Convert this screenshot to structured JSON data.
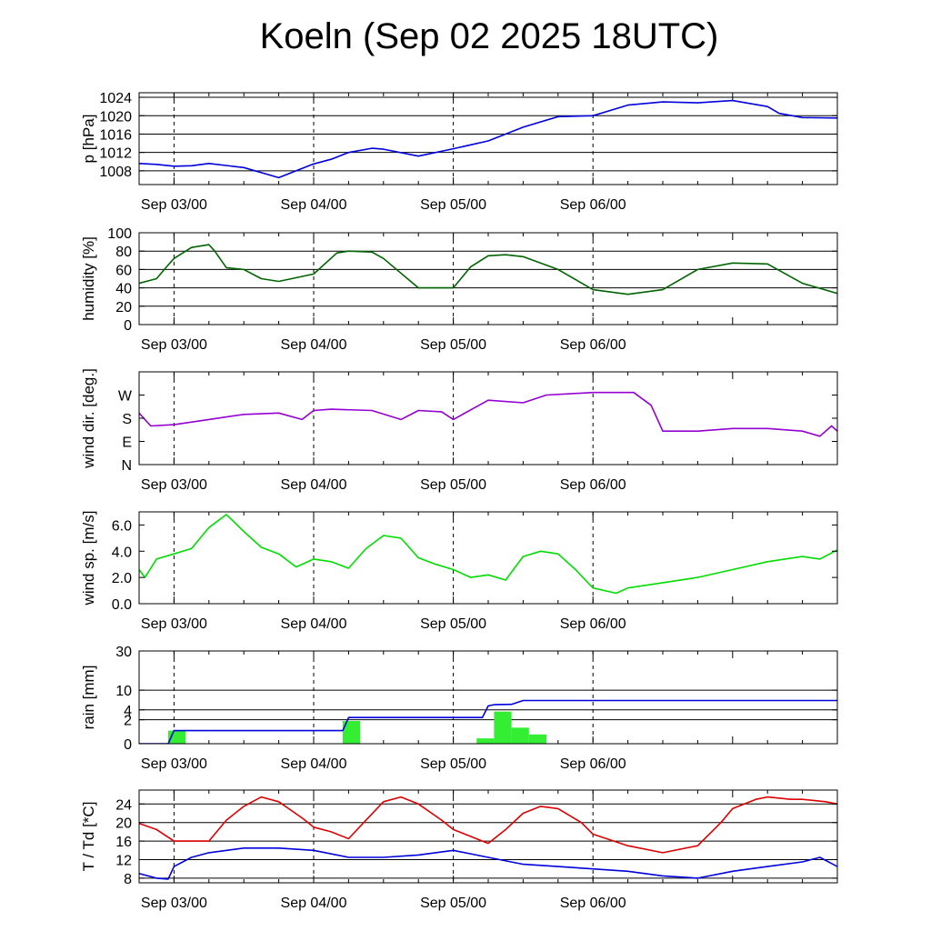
{
  "title": "Koeln (Sep 02 2025 18UTC)",
  "colors": {
    "pressure": "#0000dd",
    "humidity": "#006400",
    "wind_dir": "#9400d3",
    "wind_speed": "#00dd00",
    "rain_bar": "#33ee33",
    "rain_line": "#0000dd",
    "temperature": "#dd0000",
    "dewpoint": "#0000dd"
  },
  "chart_data": [
    {
      "id": "pressure",
      "type": "line",
      "ylabel": "p [hPa]",
      "ylim": [
        1005,
        1025
      ],
      "yticks": [
        1008,
        1012,
        1016,
        1020,
        1024
      ],
      "gridlines": [
        1008,
        1012,
        1016,
        1020,
        1024
      ],
      "xticks": [
        "Sep 03/00",
        "Sep 04/00",
        "Sep 05/00",
        "Sep 06/00"
      ],
      "x_unit": "hours since Sep 02 18UTC",
      "series": [
        {
          "name": "pressure",
          "color_key": "pressure",
          "x": [
            0,
            3,
            6,
            9,
            12,
            18,
            24,
            30,
            33,
            36,
            40,
            42,
            48,
            54,
            60,
            66,
            72,
            78,
            84,
            90,
            96,
            102,
            108,
            110,
            114,
            120
          ],
          "values": [
            1009.6,
            1009.4,
            1009.0,
            1009.1,
            1009.6,
            1008.7,
            1006.5,
            1009.5,
            1010.5,
            1012.0,
            1012.9,
            1012.7,
            1011.2,
            1012.8,
            1014.5,
            1017.5,
            1019.8,
            1020.0,
            1022.3,
            1023.0,
            1022.8,
            1023.3,
            1022.0,
            1020.5,
            1019.6,
            1019.5
          ]
        }
      ]
    },
    {
      "id": "humidity",
      "type": "line",
      "ylabel": "humidity [%]",
      "ylim": [
        0,
        100
      ],
      "yticks": [
        0,
        20,
        40,
        60,
        80,
        100
      ],
      "gridlines": [
        20,
        40,
        60,
        80
      ],
      "xticks": [
        "Sep 03/00",
        "Sep 04/00",
        "Sep 05/00",
        "Sep 06/00"
      ],
      "x_unit": "hours since Sep 02 18UTC",
      "series": [
        {
          "name": "humidity",
          "color_key": "humidity",
          "x": [
            0,
            3,
            5,
            6,
            9,
            12,
            13,
            15,
            18,
            21,
            24,
            30,
            34,
            36,
            40,
            42,
            48,
            54,
            57,
            60,
            63,
            66,
            72,
            78,
            84,
            90,
            96,
            102,
            108,
            114,
            120
          ],
          "values": [
            45,
            50,
            65,
            72,
            84,
            87,
            80,
            62,
            60,
            50,
            47,
            55,
            78,
            80,
            79,
            72,
            40,
            40,
            63,
            75,
            76,
            74,
            60,
            38,
            33,
            38,
            60,
            67,
            66,
            45,
            34
          ]
        }
      ]
    },
    {
      "id": "wind_dir",
      "type": "line",
      "ylabel": "wind dir. [deg.]",
      "ylim": [
        0,
        360
      ],
      "yticks": [
        0,
        90,
        180,
        270
      ],
      "yticklabels": [
        "N",
        "E",
        "S",
        "W"
      ],
      "gridlines": [],
      "xticks": [
        "Sep 03/00",
        "Sep 04/00",
        "Sep 05/00",
        "Sep 06/00"
      ],
      "x_unit": "hours since Sep 02 18UTC",
      "series": [
        {
          "name": "wind direction",
          "color_key": "wind_dir",
          "x": [
            0,
            2,
            6,
            12,
            18,
            24,
            28,
            30,
            33,
            40,
            45,
            48,
            52,
            54,
            60,
            66,
            70,
            78,
            85,
            88,
            90,
            96,
            102,
            108,
            114,
            117,
            119,
            120
          ],
          "values": [
            200,
            150,
            155,
            175,
            195,
            200,
            175,
            210,
            215,
            210,
            175,
            210,
            205,
            175,
            250,
            240,
            270,
            280,
            280,
            230,
            130,
            130,
            140,
            140,
            130,
            110,
            150,
            130
          ]
        }
      ]
    },
    {
      "id": "wind_speed",
      "type": "line",
      "ylabel": "wind sp. [m/s]",
      "ylim": [
        0,
        7
      ],
      "yticks": [
        0.0,
        2.0,
        4.0,
        6.0
      ],
      "yticklabels": [
        "0.0",
        "2.0",
        "4.0",
        "6.0"
      ],
      "gridlines": [],
      "xticks": [
        "Sep 03/00",
        "Sep 04/00",
        "Sep 05/00",
        "Sep 06/00"
      ],
      "x_unit": "hours since Sep 02 18UTC",
      "series": [
        {
          "name": "wind speed",
          "color_key": "wind_speed",
          "x": [
            0,
            1,
            3,
            6,
            9,
            12,
            15,
            18,
            21,
            24,
            27,
            30,
            33,
            36,
            39,
            42,
            45,
            48,
            51,
            54,
            57,
            60,
            63,
            66,
            69,
            72,
            75,
            78,
            82,
            84,
            87,
            90,
            96,
            102,
            108,
            114,
            117,
            120
          ],
          "values": [
            2.6,
            2.0,
            3.4,
            3.8,
            4.2,
            5.8,
            6.8,
            5.5,
            4.3,
            3.8,
            2.8,
            3.4,
            3.2,
            2.7,
            4.2,
            5.2,
            5.0,
            3.5,
            3.0,
            2.6,
            2.0,
            2.2,
            1.8,
            3.6,
            4.0,
            3.8,
            2.6,
            1.2,
            0.8,
            1.2,
            1.4,
            1.6,
            2.0,
            2.6,
            3.2,
            3.6,
            3.4,
            4.1
          ]
        }
      ]
    },
    {
      "id": "rain",
      "type": "bar",
      "ylabel": "rain [mm]",
      "yscale": "sqrt",
      "ylim": [
        0,
        30
      ],
      "yticks": [
        0,
        2,
        4,
        10,
        30
      ],
      "gridlines": [
        2,
        4,
        10,
        30
      ],
      "xticks": [
        "Sep 03/00",
        "Sep 04/00",
        "Sep 05/00",
        "Sep 06/00"
      ],
      "x_unit": "hours since Sep 02 18UTC",
      "bars": {
        "name": "hourly rain",
        "color_key": "rain_bar",
        "bin_hours": 3,
        "x_start": [
          5,
          35,
          58,
          61,
          64,
          67
        ],
        "values": [
          0.6,
          1.8,
          0.1,
          3.6,
          0.9,
          0.3
        ]
      },
      "series": [
        {
          "name": "accumulated rain",
          "color_key": "rain_line",
          "x": [
            0,
            5,
            6,
            35,
            36,
            59,
            60,
            61,
            64,
            66,
            70,
            120
          ],
          "values": [
            0,
            0,
            0.6,
            0.6,
            2.4,
            2.4,
            5.0,
            5.3,
            5.4,
            6.5,
            6.5,
            6.5
          ]
        }
      ]
    },
    {
      "id": "temperature",
      "type": "line",
      "ylabel": "T / Td [*C]",
      "ylim": [
        7,
        27
      ],
      "yticks": [
        8,
        12,
        16,
        20,
        24
      ],
      "gridlines": [
        8,
        12,
        16,
        20,
        24
      ],
      "xticks": [
        "Sep 03/00",
        "Sep 04/00",
        "Sep 05/00",
        "Sep 06/00"
      ],
      "x_unit": "hours since Sep 02 18UTC",
      "series": [
        {
          "name": "T",
          "color_key": "temperature",
          "x": [
            0,
            3,
            6,
            9,
            12,
            15,
            18,
            21,
            24,
            28,
            30,
            33,
            36,
            39,
            42,
            45,
            48,
            52,
            54,
            57,
            60,
            63,
            66,
            69,
            72,
            76,
            78,
            84,
            90,
            96,
            100,
            102,
            106,
            108,
            112,
            114,
            118,
            120
          ],
          "values": [
            19.8,
            18.5,
            16.0,
            16.0,
            16.0,
            20.5,
            23.5,
            25.5,
            24.5,
            21.0,
            19.0,
            18.0,
            16.5,
            20.5,
            24.5,
            25.5,
            24.0,
            20.5,
            18.5,
            17.0,
            15.5,
            18.5,
            22.0,
            23.5,
            23.0,
            20.0,
            17.5,
            15.0,
            13.5,
            15.0,
            20.0,
            23.0,
            25.0,
            25.5,
            25.0,
            25.0,
            24.5,
            24.0
          ]
        },
        {
          "name": "Td",
          "color_key": "dewpoint",
          "x": [
            0,
            3,
            5,
            6,
            9,
            12,
            18,
            24,
            30,
            36,
            42,
            48,
            54,
            60,
            66,
            72,
            78,
            84,
            90,
            96,
            102,
            108,
            114,
            117,
            120
          ],
          "values": [
            9.0,
            8.0,
            7.8,
            10.5,
            12.5,
            13.5,
            14.5,
            14.5,
            14.0,
            12.5,
            12.5,
            13.0,
            14.0,
            12.5,
            11.0,
            10.5,
            10.0,
            9.5,
            8.5,
            8.0,
            9.5,
            10.5,
            11.5,
            12.5,
            10.5
          ]
        }
      ]
    }
  ]
}
